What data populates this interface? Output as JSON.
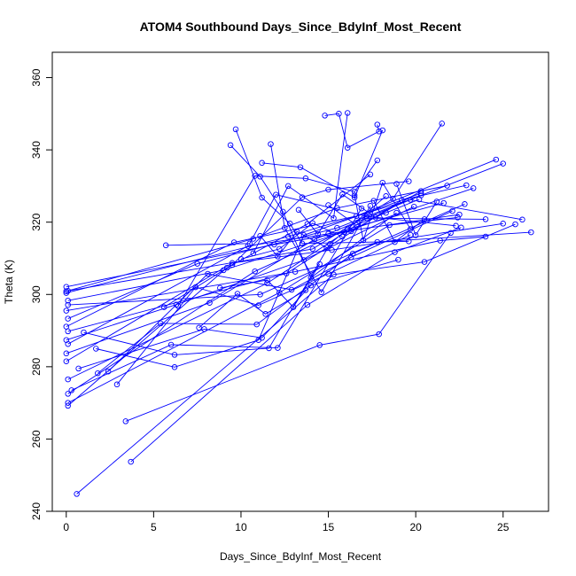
{
  "chart_data": {
    "type": "scatter",
    "title": "ATOM4 Southbound Days_Since_BdyInf_Most_Recent",
    "xlabel": "Days_Since_BdyInf_Most_Recent",
    "ylabel": "Theta (K)",
    "xlim": [
      -0.8,
      27.6
    ],
    "ylim": [
      240,
      367
    ],
    "xticks": [
      0,
      5,
      10,
      15,
      20,
      25
    ],
    "yticks": [
      240,
      260,
      280,
      300,
      320,
      340,
      360
    ],
    "grid": false,
    "legend": "none",
    "color": "#0000ff",
    "segments": [
      [
        [
          0.1,
          270.0
        ],
        [
          12.2,
          300.5
        ],
        [
          18.5,
          319.2
        ],
        [
          22.4,
          321.3
        ]
      ],
      [
        [
          0.1,
          272.5
        ],
        [
          10.8,
          306.4
        ],
        [
          16.1,
          318.1
        ],
        [
          21.6,
          325.3
        ]
      ],
      [
        [
          0.1,
          276.5
        ],
        [
          11.5,
          303.1
        ],
        [
          17.2,
          321.1
        ],
        [
          24.0,
          320.8
        ]
      ],
      [
        [
          0.0,
          281.5
        ],
        [
          9.5,
          308.7
        ],
        [
          15.2,
          312.3
        ],
        [
          25.0,
          319.6
        ]
      ],
      [
        [
          0.0,
          283.7
        ],
        [
          8.2,
          297.7
        ],
        [
          14.2,
          315.2
        ],
        [
          20.3,
          327.4
        ]
      ],
      [
        [
          0.1,
          286.3
        ],
        [
          10.4,
          313.4
        ],
        [
          15.0,
          316.8
        ],
        [
          22.5,
          322.1
        ]
      ],
      [
        [
          0.0,
          287.4
        ],
        [
          6.3,
          297.2
        ],
        [
          13.6,
          309.5
        ],
        [
          19.9,
          324.3
        ]
      ],
      [
        [
          0.1,
          289.8
        ],
        [
          12.6,
          305.8
        ],
        [
          19.2,
          326.1
        ],
        [
          22.9,
          330.2
        ]
      ],
      [
        [
          0.0,
          291.1
        ],
        [
          9.6,
          314.4
        ],
        [
          16.6,
          321.7
        ],
        [
          24.6,
          337.3
        ]
      ],
      [
        [
          0.1,
          293.3
        ],
        [
          7.5,
          308.5
        ],
        [
          15.5,
          318.4
        ],
        [
          25.0,
          336.2
        ]
      ],
      [
        [
          0.0,
          295.5
        ],
        [
          13.1,
          306.3
        ],
        [
          21.4,
          314.9
        ],
        [
          24.0,
          316.0
        ]
      ],
      [
        [
          0.1,
          297.1
        ],
        [
          11.1,
          300.0
        ],
        [
          17.8,
          314.5
        ],
        [
          26.6,
          317.2
        ]
      ],
      [
        [
          0.1,
          298.3
        ],
        [
          9.0,
          306.7
        ],
        [
          15.9,
          317.3
        ],
        [
          23.3,
          329.4
        ]
      ],
      [
        [
          0.0,
          300.4
        ],
        [
          12.7,
          316.0
        ],
        [
          19.7,
          326.2
        ],
        [
          26.1,
          320.7
        ]
      ],
      [
        [
          0.1,
          301.0
        ],
        [
          10.7,
          315.4
        ],
        [
          15.5,
          323.9
        ],
        [
          21.8,
          330.1
        ]
      ],
      [
        [
          0.0,
          302.1
        ],
        [
          11.9,
          313.8
        ],
        [
          16.3,
          317.5
        ],
        [
          20.3,
          328.6
        ]
      ],
      [
        [
          0.0,
          300.9
        ],
        [
          14.1,
          312.6
        ],
        [
          18.7,
          326.5
        ],
        [
          21.5,
          347.3
        ]
      ],
      [
        [
          0.1,
          269.2
        ],
        [
          9.2,
          307.4
        ],
        [
          13.8,
          319.5
        ],
        [
          17.4,
          333.2
        ]
      ],
      [
        [
          0.6,
          244.8
        ],
        [
          15.3,
          305.5
        ],
        [
          20.5,
          309.0
        ],
        [
          25.7,
          319.4
        ]
      ],
      [
        [
          3.7,
          253.7
        ],
        [
          13.8,
          297.1
        ],
        [
          18.8,
          311.7
        ],
        [
          22.6,
          318.5
        ]
      ],
      [
        [
          3.4,
          264.9
        ],
        [
          14.5,
          286.0
        ],
        [
          17.9,
          289.0
        ],
        [
          22.0,
          317.0
        ]
      ],
      [
        [
          0.3,
          273.5
        ],
        [
          6.0,
          286.1
        ],
        [
          12.1,
          285.2
        ],
        [
          16.9,
          323.8
        ]
      ],
      [
        [
          0.7,
          279.5
        ],
        [
          7.9,
          290.4
        ],
        [
          11.2,
          288.0
        ],
        [
          14.0,
          302.5
        ],
        [
          19.0,
          309.6
        ]
      ],
      [
        [
          1.0,
          289.5
        ],
        [
          6.2,
          283.3
        ],
        [
          11.6,
          285.1
        ],
        [
          15.1,
          314.0
        ],
        [
          18.3,
          327.2
        ]
      ],
      [
        [
          1.7,
          285.0
        ],
        [
          6.2,
          279.9
        ],
        [
          11.0,
          287.4
        ],
        [
          13.6,
          316.4
        ],
        [
          20.3,
          328.0
        ]
      ],
      [
        [
          1.8,
          278.2
        ],
        [
          5.4,
          292.0
        ],
        [
          10.9,
          291.7
        ],
        [
          16.4,
          311.3
        ],
        [
          22.8,
          325.0
        ]
      ],
      [
        [
          2.4,
          278.7
        ],
        [
          8.1,
          305.7
        ],
        [
          12.9,
          301.3
        ],
        [
          16.3,
          310.3
        ],
        [
          22.1,
          323.1
        ]
      ],
      [
        [
          2.9,
          275.1
        ],
        [
          7.4,
          302.0
        ],
        [
          11.0,
          297.0
        ],
        [
          15.0,
          305.7
        ],
        [
          19.7,
          316.5
        ]
      ],
      [
        [
          5.7,
          313.6
        ],
        [
          10.5,
          314.1
        ],
        [
          12.0,
          327.6
        ],
        [
          17.2,
          321.6
        ],
        [
          22.3,
          319.0
        ]
      ],
      [
        [
          5.6,
          296.5
        ],
        [
          9.5,
          308.2
        ],
        [
          13.5,
          326.9
        ],
        [
          15.0,
          329.0
        ],
        [
          19.6,
          331.3
        ]
      ],
      [
        [
          6.4,
          296.8
        ],
        [
          10.8,
          332.8
        ],
        [
          13.7,
          332.1
        ],
        [
          16.5,
          328.4
        ],
        [
          17.8,
          337.1
        ]
      ],
      [
        [
          9.4,
          341.3
        ],
        [
          11.1,
          332.6
        ],
        [
          12.4,
          322.9
        ],
        [
          14.0,
          304.6
        ],
        [
          18.9,
          322.6
        ]
      ],
      [
        [
          9.7,
          345.7
        ],
        [
          11.2,
          326.8
        ],
        [
          12.8,
          319.6
        ],
        [
          13.5,
          314.1
        ],
        [
          19.6,
          314.7
        ]
      ],
      [
        [
          11.7,
          341.6
        ],
        [
          12.5,
          318.4
        ],
        [
          14.6,
          300.6
        ],
        [
          17.4,
          324.5
        ]
      ],
      [
        [
          14.8,
          349.5
        ],
        [
          15.6,
          350.0
        ],
        [
          16.1,
          340.6
        ],
        [
          17.9,
          345.1
        ],
        [
          17.8,
          347.0
        ]
      ],
      [
        [
          16.1,
          350.2
        ],
        [
          15.3,
          321.1
        ],
        [
          12.7,
          330.0
        ],
        [
          10.7,
          311.4
        ]
      ],
      [
        [
          18.1,
          345.4
        ],
        [
          16.5,
          326.8
        ],
        [
          13.4,
          335.2
        ],
        [
          11.2,
          336.4
        ]
      ],
      [
        [
          15.0,
          324.7
        ],
        [
          16.6,
          319.2
        ],
        [
          18.3,
          322.6
        ],
        [
          20.2,
          326.3
        ]
      ],
      [
        [
          16.5,
          327.4
        ],
        [
          17.0,
          315.0
        ],
        [
          18.1,
          330.9
        ],
        [
          19.7,
          318.1
        ]
      ],
      [
        [
          18.9,
          330.6
        ],
        [
          20.0,
          316.4
        ],
        [
          21.2,
          325.7
        ]
      ],
      [
        [
          17.6,
          325.9
        ],
        [
          18.8,
          314.5
        ],
        [
          20.5,
          320.8
        ]
      ],
      [
        [
          13.3,
          323.4
        ],
        [
          14.4,
          316.7
        ],
        [
          15.8,
          327.7
        ],
        [
          17.7,
          321.3
        ]
      ],
      [
        [
          11.1,
          316.2
        ],
        [
          12.1,
          310.5
        ],
        [
          13.2,
          317.4
        ],
        [
          14.9,
          313.0
        ]
      ],
      [
        [
          10.0,
          309.8
        ],
        [
          12.2,
          312.6
        ],
        [
          14.1,
          319.7
        ],
        [
          15.8,
          316.0
        ]
      ],
      [
        [
          8.8,
          301.8
        ],
        [
          11.5,
          304.0
        ],
        [
          13.0,
          296.5
        ],
        [
          14.5,
          308.4
        ]
      ],
      [
        [
          7.6,
          290.8
        ],
        [
          9.8,
          300.2
        ],
        [
          11.4,
          294.6
        ],
        [
          13.7,
          301.2
        ]
      ]
    ]
  }
}
